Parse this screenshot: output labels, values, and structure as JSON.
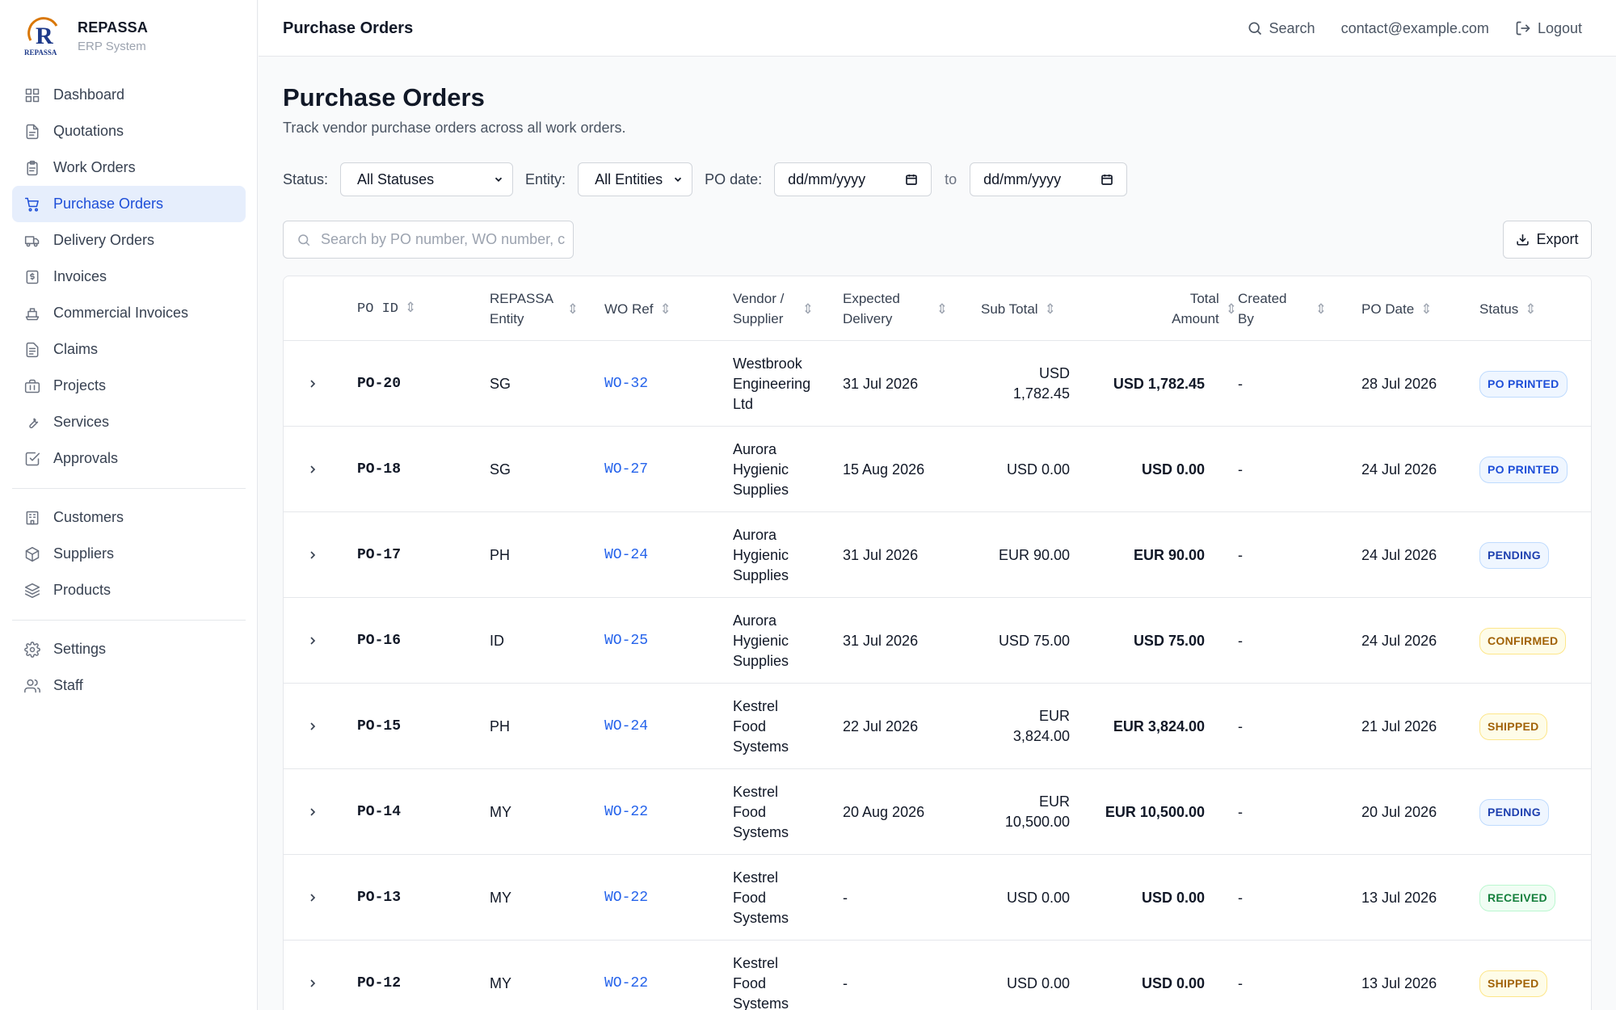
{
  "brand": {
    "name": "REPASSA",
    "subtitle": "ERP System",
    "logo_letter": "R",
    "logo_text": "REPASSA"
  },
  "nav": {
    "group1": [
      {
        "label": "Dashboard",
        "icon": "grid-icon"
      },
      {
        "label": "Quotations",
        "icon": "document-icon"
      },
      {
        "label": "Work Orders",
        "icon": "clipboard-icon"
      },
      {
        "label": "Purchase Orders",
        "icon": "cart-icon",
        "active": true
      },
      {
        "label": "Delivery Orders",
        "icon": "truck-icon"
      },
      {
        "label": "Invoices",
        "icon": "receipt-icon"
      },
      {
        "label": "Commercial Invoices",
        "icon": "ship-icon"
      },
      {
        "label": "Claims",
        "icon": "file-text-icon"
      },
      {
        "label": "Projects",
        "icon": "briefcase-icon"
      },
      {
        "label": "Services",
        "icon": "wrench-icon"
      },
      {
        "label": "Approvals",
        "icon": "check-square-icon"
      }
    ],
    "group2": [
      {
        "label": "Customers",
        "icon": "building-icon"
      },
      {
        "label": "Suppliers",
        "icon": "package-icon"
      },
      {
        "label": "Products",
        "icon": "layers-icon"
      }
    ],
    "group3": [
      {
        "label": "Settings",
        "icon": "gear-icon"
      },
      {
        "label": "Staff",
        "icon": "users-icon"
      }
    ]
  },
  "topbar": {
    "title": "Purchase Orders",
    "search_label": "Search",
    "email": "contact@example.com",
    "logout_label": "Logout"
  },
  "page": {
    "title": "Purchase Orders",
    "subtitle": "Track vendor purchase orders across all work orders."
  },
  "filters": {
    "status_label": "Status:",
    "status_value": "All Statuses",
    "entity_label": "Entity:",
    "entity_value": "All Entities",
    "date_label": "PO date:",
    "date_from": "dd/mm/yyyy",
    "to_label": "to",
    "date_to": "dd/mm/yyyy"
  },
  "search": {
    "placeholder": "Search by PO number, WO number, c"
  },
  "export_label": "Export",
  "table": {
    "headers": {
      "po_id": "PO ID",
      "entity_l1": "REPASSA",
      "entity_l2": "Entity",
      "wo_ref": "WO Ref",
      "vendor_l1": "Vendor /",
      "vendor_l2": "Supplier",
      "delivery_l1": "Expected",
      "delivery_l2": "Delivery",
      "sub_total": "Sub Total",
      "total_l1": "Total",
      "total_l2": "Amount",
      "created_l1": "Created",
      "created_l2": "By",
      "po_date": "PO Date",
      "status": "Status"
    },
    "rows": [
      {
        "po": "PO-20",
        "entity": "SG",
        "wo": "WO-32",
        "vendor": [
          "Westbrook",
          "Engineering",
          "Ltd"
        ],
        "delivery": "31 Jul 2026",
        "sub": [
          "USD",
          "1,782.45"
        ],
        "total": "USD 1,782.45",
        "created": "-",
        "date": "28 Jul 2026",
        "status": "PO PRINTED",
        "status_color": "#1d4ed8",
        "status_bg": "#eff6ff",
        "status_border": "#bfdbfe"
      },
      {
        "po": "PO-18",
        "entity": "SG",
        "wo": "WO-27",
        "vendor": [
          "Aurora",
          "Hygienic",
          "Supplies"
        ],
        "delivery": "15 Aug 2026",
        "sub": [
          "USD 0.00"
        ],
        "total": "USD 0.00",
        "created": "-",
        "date": "24 Jul 2026",
        "status": "PO PRINTED",
        "status_color": "#1d4ed8",
        "status_bg": "#eff6ff",
        "status_border": "#bfdbfe"
      },
      {
        "po": "PO-17",
        "entity": "PH",
        "wo": "WO-24",
        "vendor": [
          "Aurora",
          "Hygienic",
          "Supplies"
        ],
        "delivery": "31 Jul 2026",
        "sub": [
          "EUR 90.00"
        ],
        "total": "EUR 90.00",
        "created": "-",
        "date": "24 Jul 2026",
        "status": "PENDING",
        "status_color": "#1e40af",
        "status_bg": "#eff6ff",
        "status_border": "#bfdbfe"
      },
      {
        "po": "PO-16",
        "entity": "ID",
        "wo": "WO-25",
        "vendor": [
          "Aurora",
          "Hygienic",
          "Supplies"
        ],
        "delivery": "31 Jul 2026",
        "sub": [
          "USD 75.00"
        ],
        "total": "USD 75.00",
        "created": "-",
        "date": "24 Jul 2026",
        "status": "CONFIRMED",
        "status_color": "#a16207",
        "status_bg": "#fefce8",
        "status_border": "#fde68a"
      },
      {
        "po": "PO-15",
        "entity": "PH",
        "wo": "WO-24",
        "vendor": [
          "Kestrel",
          "Food",
          "Systems"
        ],
        "delivery": "22 Jul 2026",
        "sub": [
          "EUR",
          "3,824.00"
        ],
        "total": "EUR 3,824.00",
        "created": "-",
        "date": "21 Jul 2026",
        "status": "SHIPPED",
        "status_color": "#a16207",
        "status_bg": "#fefce8",
        "status_border": "#fde68a"
      },
      {
        "po": "PO-14",
        "entity": "MY",
        "wo": "WO-22",
        "vendor": [
          "Kestrel",
          "Food",
          "Systems"
        ],
        "delivery": "20 Aug 2026",
        "sub": [
          "EUR",
          "10,500.00"
        ],
        "total": "EUR 10,500.00",
        "created": "-",
        "date": "20 Jul 2026",
        "status": "PENDING",
        "status_color": "#1e40af",
        "status_bg": "#eff6ff",
        "status_border": "#bfdbfe"
      },
      {
        "po": "PO-13",
        "entity": "MY",
        "wo": "WO-22",
        "vendor": [
          "Kestrel",
          "Food",
          "Systems"
        ],
        "delivery": "-",
        "sub": [
          "USD 0.00"
        ],
        "total": "USD 0.00",
        "created": "-",
        "date": "13 Jul 2026",
        "status": "RECEIVED",
        "status_color": "#15803d",
        "status_bg": "#f0fdf4",
        "status_border": "#bbf7d0"
      },
      {
        "po": "PO-12",
        "entity": "MY",
        "wo": "WO-22",
        "vendor": [
          "Kestrel",
          "Food",
          "Systems"
        ],
        "delivery": "-",
        "sub": [
          "USD 0.00"
        ],
        "total": "USD 0.00",
        "created": "-",
        "date": "13 Jul 2026",
        "status": "SHIPPED",
        "status_color": "#a16207",
        "status_bg": "#fefce8",
        "status_border": "#fde68a"
      }
    ]
  }
}
